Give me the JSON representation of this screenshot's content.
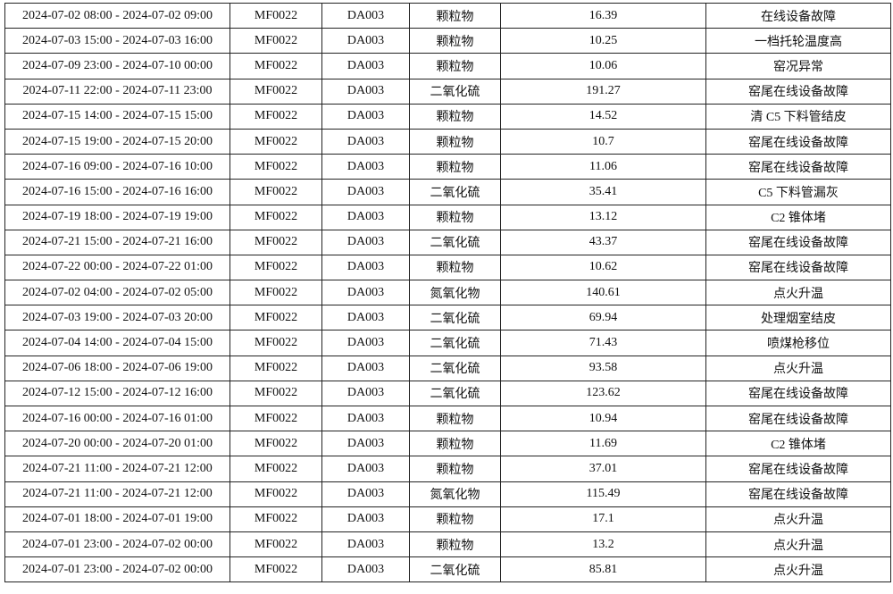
{
  "rows": [
    [
      "2024-07-02 08:00 - 2024-07-02 09:00",
      "MF0022",
      "DA003",
      "颗粒物",
      "16.39",
      "在线设备故障"
    ],
    [
      "2024-07-03 15:00 - 2024-07-03 16:00",
      "MF0022",
      "DA003",
      "颗粒物",
      "10.25",
      "一档托轮温度高"
    ],
    [
      "2024-07-09 23:00 - 2024-07-10 00:00",
      "MF0022",
      "DA003",
      "颗粒物",
      "10.06",
      "窑况异常"
    ],
    [
      "2024-07-11 22:00 - 2024-07-11 23:00",
      "MF0022",
      "DA003",
      "二氧化硫",
      "191.27",
      "窑尾在线设备故障"
    ],
    [
      "2024-07-15 14:00 - 2024-07-15 15:00",
      "MF0022",
      "DA003",
      "颗粒物",
      "14.52",
      "清 C5 下料管结皮"
    ],
    [
      "2024-07-15 19:00 - 2024-07-15 20:00",
      "MF0022",
      "DA003",
      "颗粒物",
      "10.7",
      "窑尾在线设备故障"
    ],
    [
      "2024-07-16 09:00 - 2024-07-16 10:00",
      "MF0022",
      "DA003",
      "颗粒物",
      "11.06",
      "窑尾在线设备故障"
    ],
    [
      "2024-07-16 15:00 - 2024-07-16 16:00",
      "MF0022",
      "DA003",
      "二氧化硫",
      "35.41",
      "C5 下料管漏灰"
    ],
    [
      "2024-07-19 18:00 - 2024-07-19 19:00",
      "MF0022",
      "DA003",
      "颗粒物",
      "13.12",
      "C2 锥体堵"
    ],
    [
      "2024-07-21 15:00 - 2024-07-21 16:00",
      "MF0022",
      "DA003",
      "二氧化硫",
      "43.37",
      "窑尾在线设备故障"
    ],
    [
      "2024-07-22 00:00 - 2024-07-22 01:00",
      "MF0022",
      "DA003",
      "颗粒物",
      "10.62",
      "窑尾在线设备故障"
    ],
    [
      "2024-07-02 04:00 - 2024-07-02 05:00",
      "MF0022",
      "DA003",
      "氮氧化物",
      "140.61",
      "点火升温"
    ],
    [
      "2024-07-03 19:00 - 2024-07-03 20:00",
      "MF0022",
      "DA003",
      "二氧化硫",
      "69.94",
      "处理烟室结皮"
    ],
    [
      "2024-07-04 14:00 - 2024-07-04 15:00",
      "MF0022",
      "DA003",
      "二氧化硫",
      "71.43",
      "喷煤枪移位"
    ],
    [
      "2024-07-06 18:00 - 2024-07-06 19:00",
      "MF0022",
      "DA003",
      "二氧化硫",
      "93.58",
      "点火升温"
    ],
    [
      "2024-07-12 15:00 - 2024-07-12 16:00",
      "MF0022",
      "DA003",
      "二氧化硫",
      "123.62",
      "窑尾在线设备故障"
    ],
    [
      "2024-07-16 00:00 - 2024-07-16 01:00",
      "MF0022",
      "DA003",
      "颗粒物",
      "10.94",
      "窑尾在线设备故障"
    ],
    [
      "2024-07-20 00:00 - 2024-07-20 01:00",
      "MF0022",
      "DA003",
      "颗粒物",
      "11.69",
      "C2 锥体堵"
    ],
    [
      "2024-07-21 11:00 - 2024-07-21 12:00",
      "MF0022",
      "DA003",
      "颗粒物",
      "37.01",
      "窑尾在线设备故障"
    ],
    [
      "2024-07-21 11:00 - 2024-07-21 12:00",
      "MF0022",
      "DA003",
      "氮氧化物",
      "115.49",
      "窑尾在线设备故障"
    ],
    [
      "2024-07-01 18:00 - 2024-07-01 19:00",
      "MF0022",
      "DA003",
      "颗粒物",
      "17.1",
      "点火升温"
    ],
    [
      "2024-07-01 23:00 - 2024-07-02 00:00",
      "MF0022",
      "DA003",
      "颗粒物",
      "13.2",
      "点火升温"
    ],
    [
      "2024-07-01 23:00 - 2024-07-02 00:00",
      "MF0022",
      "DA003",
      "二氧化硫",
      "85.81",
      "点火升温"
    ]
  ]
}
